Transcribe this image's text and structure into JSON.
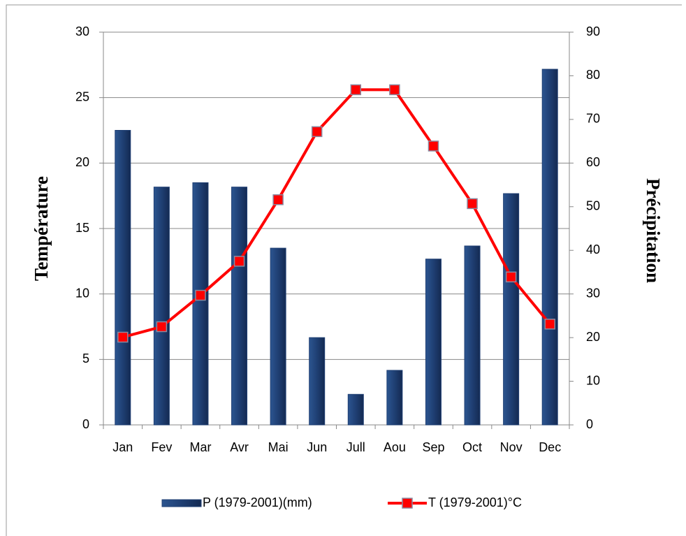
{
  "chart_data": {
    "type": "bar",
    "categories": [
      "Jan",
      "Fev",
      "Mar",
      "Avr",
      "Mai",
      "Jun",
      "Jull",
      "Aou",
      "Sep",
      "Oct",
      "Nov",
      "Dec"
    ],
    "series": [
      {
        "name": "P (1979-2001)(mm)",
        "color": "#1f3f73",
        "axis": "y2",
        "type": "bar",
        "values": [
          67.5,
          54.5,
          55.5,
          54.5,
          40.5,
          20,
          7,
          12.5,
          38,
          41,
          53,
          81.5
        ]
      },
      {
        "name": "T (1979-2001)°C",
        "color": "#ff0000",
        "type": "line",
        "values": [
          6.7,
          7.5,
          9.9,
          12.5,
          17.2,
          22.4,
          25.6,
          25.6,
          21.3,
          16.9,
          11.3,
          7.7
        ]
      }
    ],
    "ylabel": "Température",
    "y2label": "Précipitation",
    "ylim": [
      0,
      30
    ],
    "yticks": [
      0,
      5,
      10,
      15,
      20,
      25,
      30
    ],
    "y2lim": [
      0,
      90
    ],
    "y2ticks": [
      0,
      10,
      20,
      30,
      40,
      50,
      60,
      70,
      80,
      90
    ],
    "grid": true,
    "legend": "bottom"
  }
}
